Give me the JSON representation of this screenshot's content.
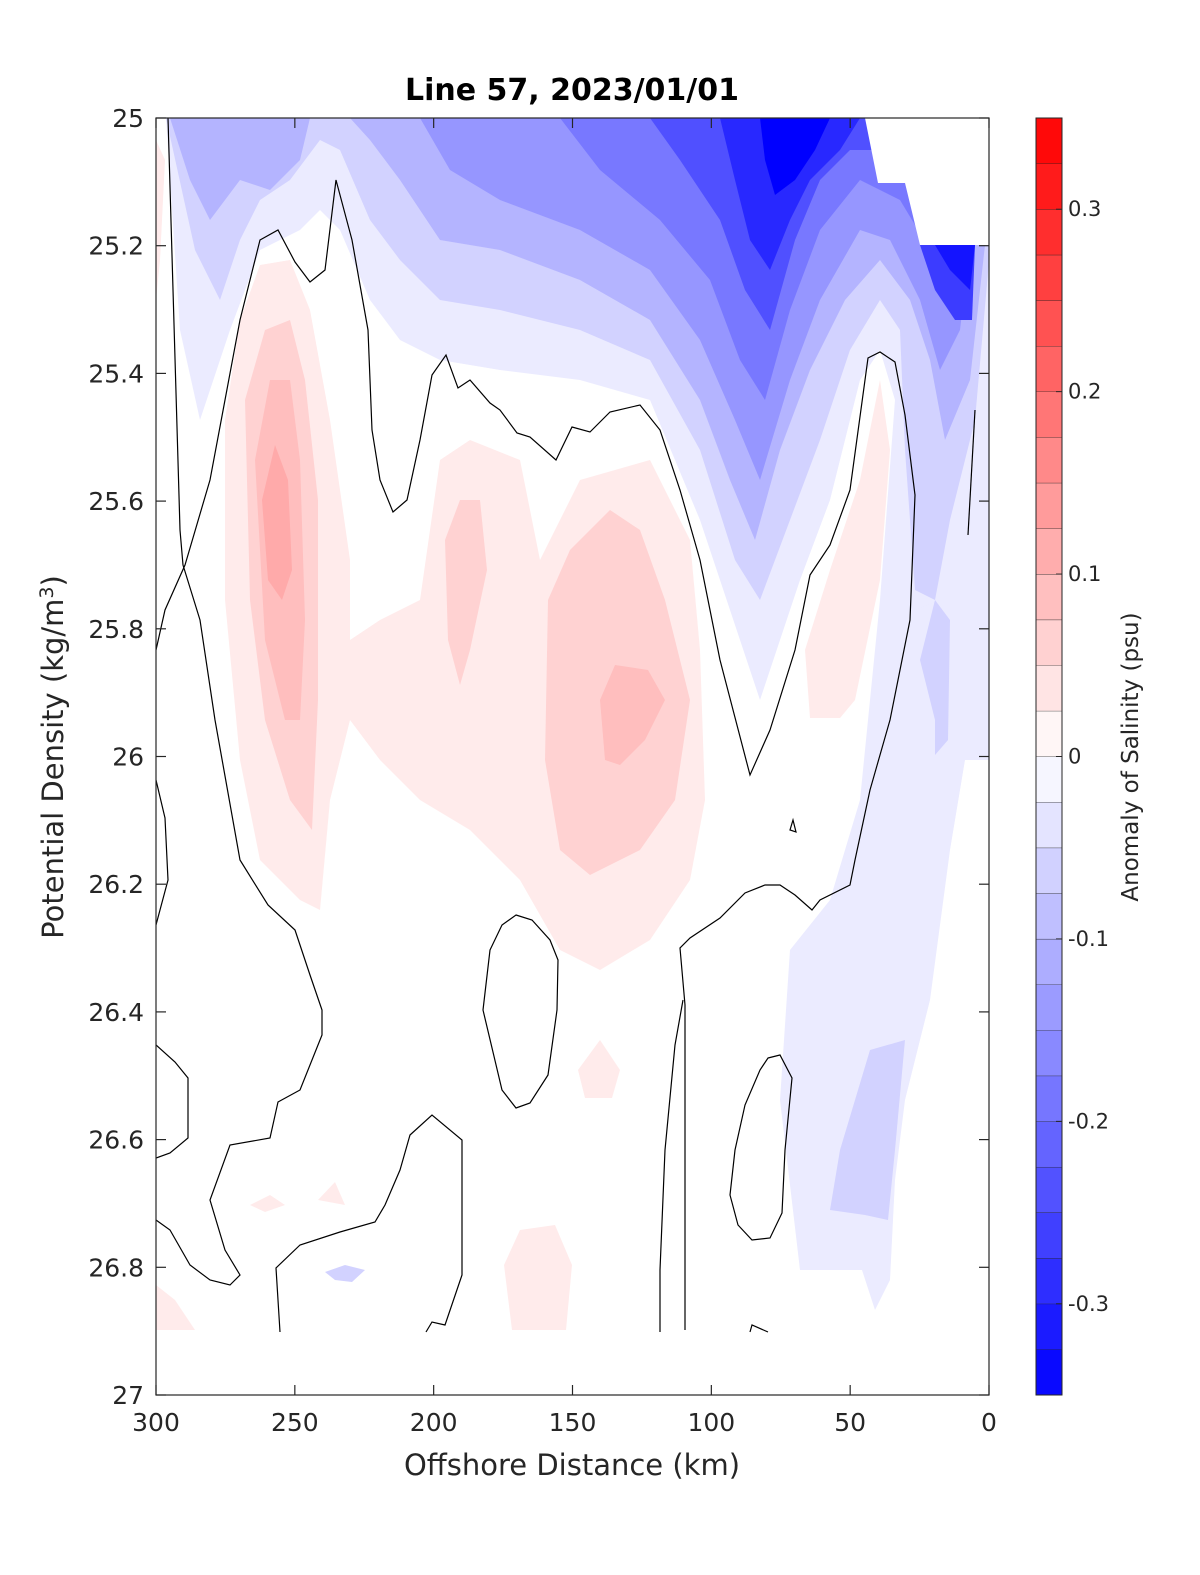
{
  "chart_data": {
    "type": "heatmap",
    "title": "Line 57, 2023/01/01",
    "xlabel": "Offshore Distance (km)",
    "ylabel_main": "Potential Density (kg/m",
    "ylabel_sup": "3",
    "ylabel_close": ")",
    "xlim": [
      300,
      0
    ],
    "ylim": [
      25,
      27
    ],
    "x_reversed": true,
    "y_reversed": true,
    "xticks": [
      300,
      250,
      200,
      150,
      100,
      50,
      0
    ],
    "yticks": [
      25,
      25.2,
      25.4,
      25.6,
      25.8,
      26,
      26.2,
      26.4,
      26.6,
      26.8,
      27
    ],
    "xtick_labels": [
      "300",
      "250",
      "200",
      "150",
      "100",
      "50",
      "0"
    ],
    "ytick_labels": [
      "25",
      "25.2",
      "25.4",
      "25.6",
      "25.8",
      "26",
      "26.2",
      "26.4",
      "26.6",
      "26.8",
      "27"
    ],
    "colorbar": {
      "label": "Anomaly of Salinity (psu)",
      "range": [
        -0.35,
        0.35
      ],
      "levels_step": 0.025,
      "ticks": [
        0.3,
        0.2,
        0.1,
        0,
        -0.1,
        -0.2,
        -0.3
      ],
      "tick_labels": [
        "0.3",
        "0.2",
        "0.1",
        "0",
        "-0.1",
        "-0.2",
        "-0.3"
      ],
      "min_color": "#0000ff",
      "mid_color": "#ffffff",
      "max_color": "#ff0000"
    },
    "features": [
      {
        "x": 72,
        "y": 25.15,
        "value": -0.3
      },
      {
        "x": 70,
        "y": 25.45,
        "value": -0.24
      },
      {
        "x": 15,
        "y": 25.3,
        "value": -0.22
      },
      {
        "x": 88,
        "y": 25.72,
        "value": -0.14
      },
      {
        "x": 125,
        "y": 25.2,
        "value": -0.12
      },
      {
        "x": 185,
        "y": 25.12,
        "value": -0.1
      },
      {
        "x": 275,
        "y": 25.05,
        "value": -0.09
      },
      {
        "x": 235,
        "y": 25.08,
        "value": -0.05
      },
      {
        "x": 35,
        "y": 25.95,
        "value": -0.06
      },
      {
        "x": 30,
        "y": 26.55,
        "value": -0.06
      },
      {
        "x": 255,
        "y": 25.65,
        "value": 0.12
      },
      {
        "x": 130,
        "y": 25.92,
        "value": 0.09
      },
      {
        "x": 185,
        "y": 25.72,
        "value": 0.06
      },
      {
        "x": 40,
        "y": 25.6,
        "value": 0.05
      },
      {
        "x": 190,
        "y": 26.05,
        "value": 0.03
      },
      {
        "x": 160,
        "y": 26.82,
        "value": 0.03
      },
      {
        "x": 140,
        "y": 26.5,
        "value": 0.03
      }
    ],
    "zero_contours": [
      [
        [
          295,
          25
        ],
        [
          291,
          25.5
        ],
        [
          289,
          25.7
        ],
        [
          298,
          25.8
        ]
      ],
      [
        [
          242,
          26.25
        ],
        [
          232,
          25.8
        ],
        [
          228,
          25.65
        ],
        [
          236,
          25.2
        ],
        [
          240,
          25.28
        ],
        [
          245,
          25.2
        ],
        [
          246,
          25.6
        ],
        [
          243,
          26.0
        ]
      ],
      [
        [
          232,
          25.4
        ],
        [
          225,
          25.1
        ],
        [
          218,
          25.5
        ],
        [
          212,
          25.62
        ],
        [
          205,
          25.8
        ],
        [
          195,
          25.4
        ],
        [
          187,
          25.43
        ],
        [
          175,
          25.5
        ],
        [
          162,
          25.55
        ],
        [
          150,
          25.5
        ],
        [
          132,
          25.45
        ],
        [
          118,
          25.6
        ],
        [
          95,
          25.85
        ],
        [
          86,
          26.05
        ],
        [
          75,
          25.72
        ],
        [
          62,
          25.6
        ],
        [
          46,
          25.4
        ],
        [
          30,
          25.55
        ],
        [
          28,
          25.8
        ]
      ]
    ]
  }
}
